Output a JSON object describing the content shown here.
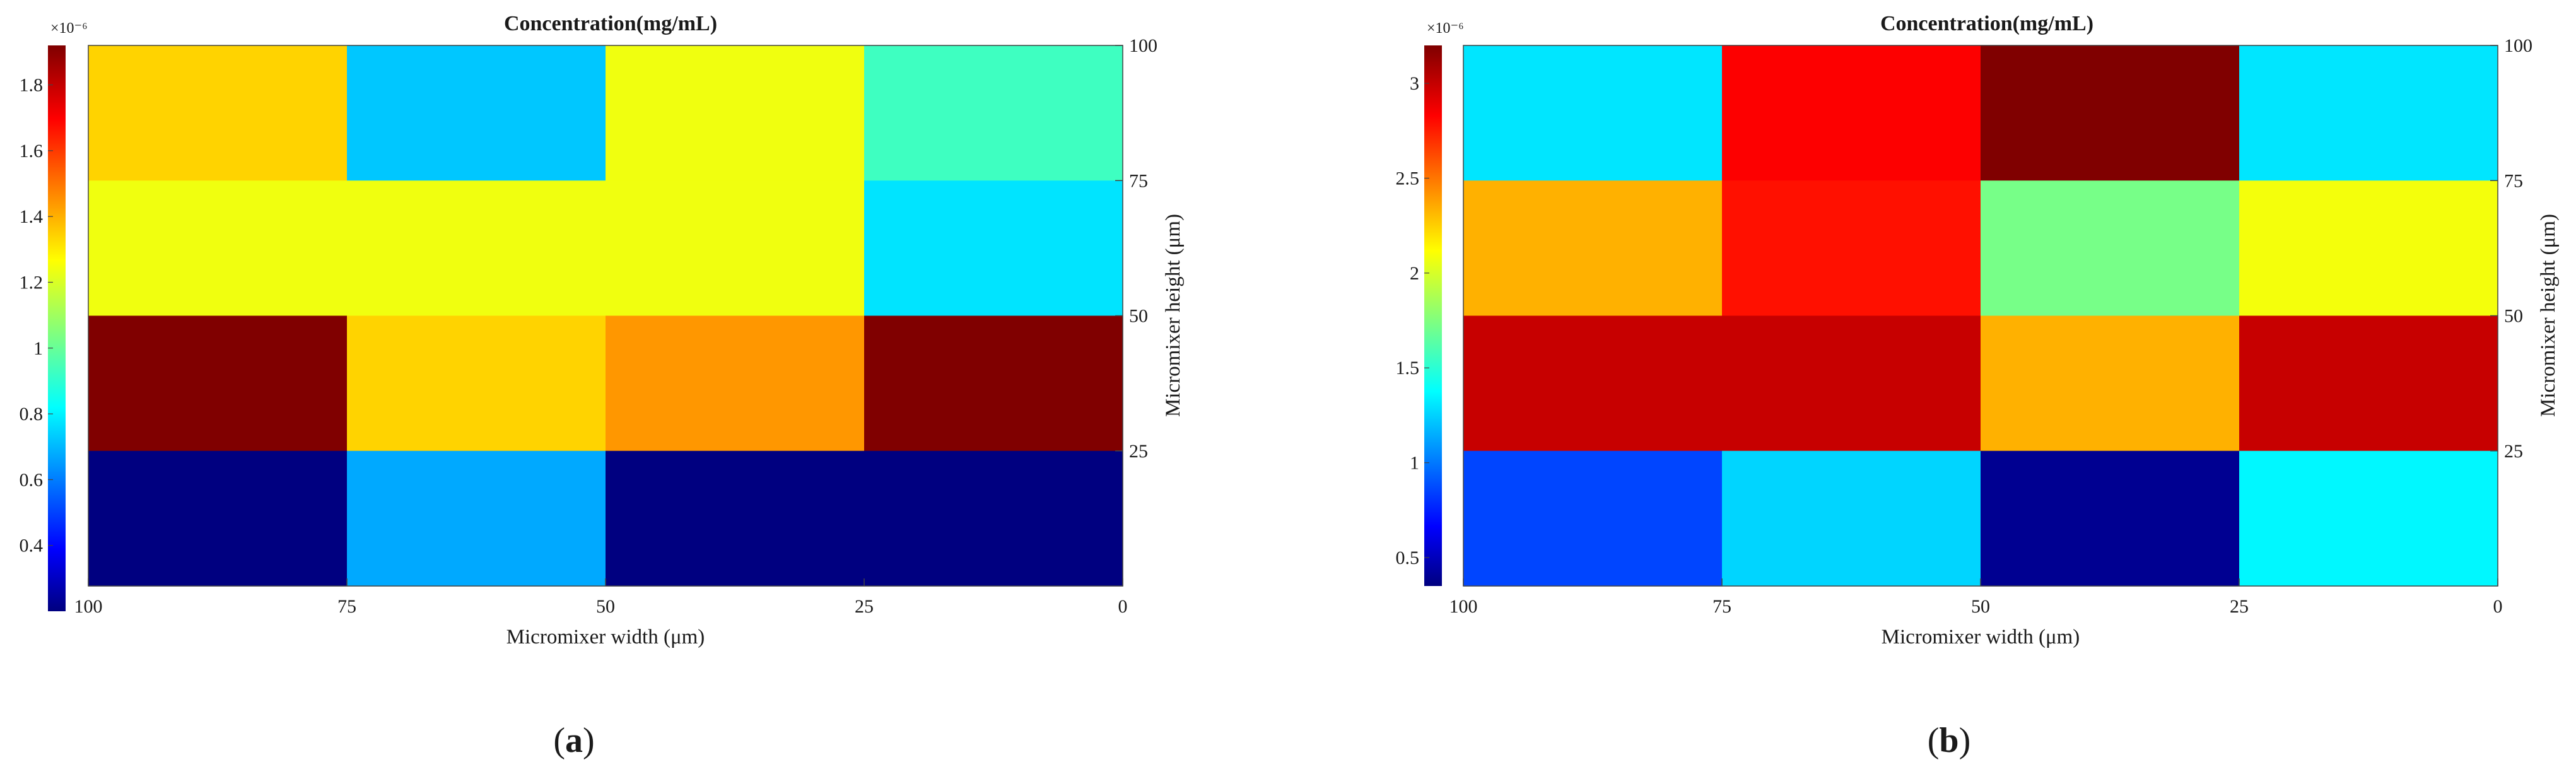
{
  "chart_data": [
    {
      "type": "heatmap",
      "panel_label": "(a)",
      "panel_letter": "a",
      "title": "Concentration(mg/mL)",
      "xlabel": "Micromixer width (μm)",
      "ylabel": "Micromixer height (μm)",
      "x_ticks": [
        "100",
        "75",
        "50",
        "25",
        "0"
      ],
      "y_ticks": [
        "25",
        "50",
        "75",
        "100"
      ],
      "xlim": [
        100,
        0
      ],
      "ylim": [
        0,
        100
      ],
      "x_reversed": true,
      "y_axis_side": "right",
      "colormap": "jet",
      "colorbar": {
        "side": "left",
        "exponent_label": "×10⁻⁶",
        "min": 0.2,
        "max": 1.92,
        "ticks": [
          "0.4",
          "0.6",
          "0.8",
          "1",
          "1.2",
          "1.4",
          "1.6",
          "1.8"
        ],
        "tick_values": [
          0.4,
          0.6,
          0.8,
          1.0,
          1.2,
          1.4,
          1.6,
          1.8
        ]
      },
      "x_bins": [
        "100–75",
        "75–50",
        "50–25",
        "25–0"
      ],
      "y_bins": [
        "75–100",
        "50–75",
        "25–50",
        "0–25"
      ],
      "values": [
        [
          1.35,
          0.75,
          1.25,
          0.95
        ],
        [
          1.25,
          1.25,
          1.25,
          0.8
        ],
        [
          1.92,
          1.35,
          1.45,
          1.92
        ],
        [
          0.2,
          0.7,
          0.2,
          0.2
        ]
      ]
    },
    {
      "type": "heatmap",
      "panel_label": "(b)",
      "panel_letter": "b",
      "title": "Concentration(mg/mL)",
      "xlabel": "Micromixer width (μm)",
      "ylabel": "Micromixer height (μm)",
      "x_ticks": [
        "100",
        "75",
        "50",
        "25",
        "0"
      ],
      "y_ticks": [
        "25",
        "50",
        "75",
        "100"
      ],
      "xlim": [
        100,
        0
      ],
      "ylim": [
        0,
        100
      ],
      "x_reversed": true,
      "y_axis_side": "right",
      "colormap": "jet",
      "colorbar": {
        "side": "left",
        "exponent_label": "×10⁻⁶",
        "min": 0.35,
        "max": 3.2,
        "ticks": [
          "0.5",
          "1",
          "1.5",
          "2",
          "2.5",
          "3"
        ],
        "tick_values": [
          0.5,
          1.0,
          1.5,
          2.0,
          2.5,
          3.0
        ]
      },
      "x_bins": [
        "100–75",
        "75–50",
        "50–25",
        "25–0"
      ],
      "y_bins": [
        "75–100",
        "50–75",
        "25–50",
        "0–25"
      ],
      "values": [
        [
          1.35,
          2.85,
          3.2,
          1.35
        ],
        [
          2.35,
          2.8,
          1.75,
          2.1
        ],
        [
          3.0,
          3.0,
          2.35,
          3.0
        ],
        [
          0.9,
          1.3,
          0.4,
          1.4
        ]
      ]
    }
  ]
}
